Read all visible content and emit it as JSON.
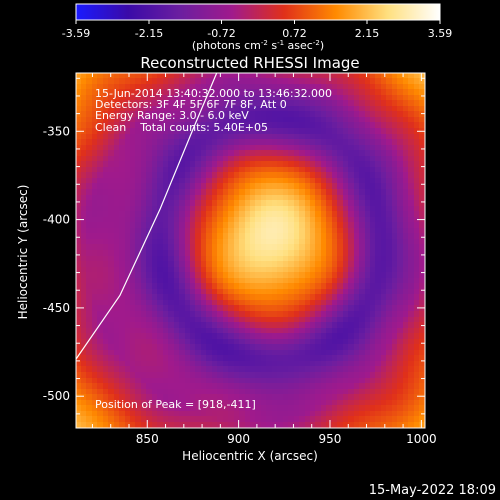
{
  "colorbar": {
    "tick_labels": [
      "-3.59",
      "-2.15",
      "-0.72",
      "0.72",
      "2.15",
      "3.59"
    ],
    "unit_main": "(photons cm",
    "unit_exp1": "-2",
    "unit_s": " s",
    "unit_exp2": "-1",
    "unit_asec": " asec",
    "unit_exp3": "-2",
    "unit_close": ")",
    "colors": [
      "#1a1aff",
      "#3a0aa8",
      "#6b1ea0",
      "#a01a8c",
      "#e0301a",
      "#ff8a00",
      "#ffe080",
      "#ffffff"
    ]
  },
  "annotations": {
    "time_range": "15-Jun-2014 13:40:32.000 to 13:46:32.000",
    "detectors": "Detectors: 3F 4F 5F 6F 7F 8F, Att 0",
    "energy": "Energy Range: 3.0 - 6.0 keV",
    "clean": "Clean    Total counts: 5.40E+05",
    "peak": "Position of Peak = [918,-411]"
  },
  "footer": {
    "date": "15-May-2022 18:09"
  },
  "chart_data": {
    "type": "heatmap",
    "title": "Reconstructed RHESSI Image",
    "xlabel": "Heliocentric X (arcsec)",
    "ylabel": "Heliocentric Y (arcsec)",
    "xlim": [
      811,
      1002
    ],
    "ylim": [
      -518,
      -317
    ],
    "x_ticks": [
      850,
      900,
      950,
      1000
    ],
    "y_ticks": [
      -350,
      -400,
      -450,
      -500
    ],
    "x_tick_labels": [
      "850",
      "900",
      "950",
      "1000"
    ],
    "y_tick_labels": [
      "-350",
      "-400",
      "-450",
      "-500"
    ],
    "peak": [
      918,
      -411
    ],
    "color_range": [
      -3.59,
      3.59
    ],
    "limb_line": [
      [
        811,
        -479
      ],
      [
        835,
        -443
      ],
      [
        857,
        -394
      ],
      [
        875,
        -349
      ],
      [
        888,
        -317
      ]
    ]
  }
}
